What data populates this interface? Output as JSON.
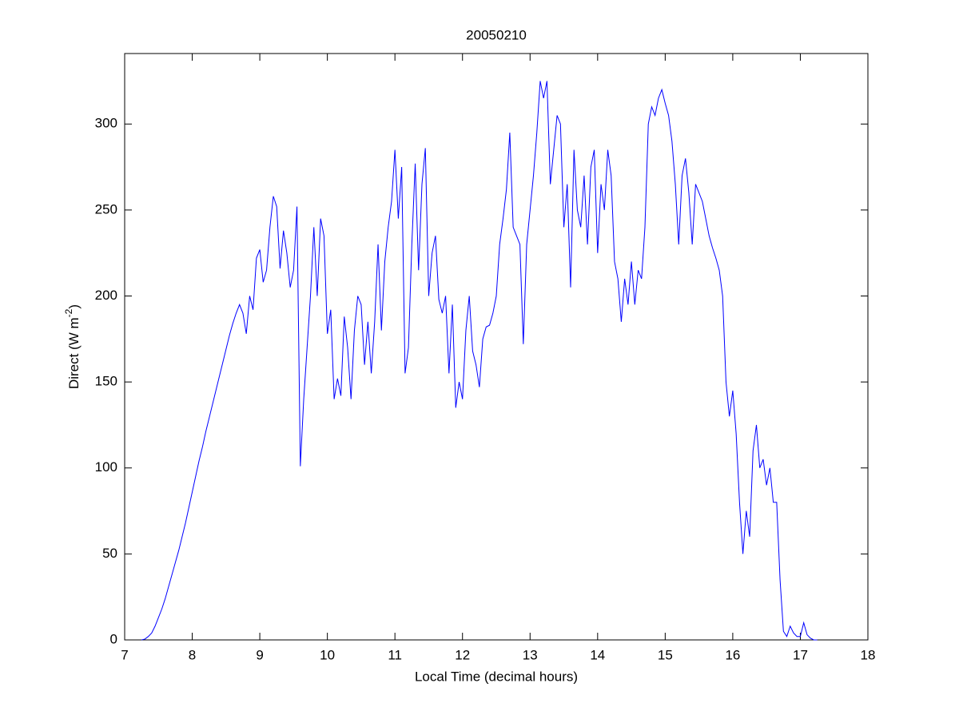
{
  "chart_data": {
    "type": "line",
    "title": "20050210",
    "xlabel": "Local Time (decimal hours)",
    "ylabel": {
      "text": "Direct (W m",
      "sup": "-2",
      "tail": ")"
    },
    "xlim": [
      7,
      18
    ],
    "xticks": [
      7,
      8,
      9,
      10,
      11,
      12,
      13,
      14,
      15,
      16,
      17,
      18
    ],
    "ylim": [
      0,
      341
    ],
    "yticks": [
      0,
      50,
      100,
      150,
      200,
      250,
      300
    ],
    "grid": false,
    "series": [
      {
        "name": "Direct",
        "color": "#0000ff",
        "x": [
          7.25,
          7.3,
          7.35,
          7.4,
          7.45,
          7.5,
          7.55,
          7.6,
          7.65,
          7.7,
          7.75,
          7.8,
          7.85,
          7.9,
          7.95,
          8.0,
          8.05,
          8.1,
          8.15,
          8.2,
          8.25,
          8.3,
          8.35,
          8.4,
          8.45,
          8.5,
          8.55,
          8.6,
          8.65,
          8.7,
          8.75,
          8.8,
          8.85,
          8.9,
          8.95,
          9.0,
          9.05,
          9.1,
          9.15,
          9.2,
          9.25,
          9.3,
          9.35,
          9.4,
          9.45,
          9.5,
          9.55,
          9.6,
          9.65,
          9.7,
          9.75,
          9.8,
          9.85,
          9.9,
          9.95,
          10.0,
          10.05,
          10.1,
          10.15,
          10.2,
          10.25,
          10.3,
          10.35,
          10.4,
          10.45,
          10.5,
          10.55,
          10.6,
          10.65,
          10.7,
          10.75,
          10.8,
          10.85,
          10.9,
          10.95,
          11.0,
          11.05,
          11.1,
          11.15,
          11.2,
          11.25,
          11.3,
          11.35,
          11.4,
          11.45,
          11.5,
          11.55,
          11.6,
          11.65,
          11.7,
          11.75,
          11.8,
          11.85,
          11.9,
          11.95,
          12.0,
          12.05,
          12.1,
          12.15,
          12.2,
          12.25,
          12.3,
          12.35,
          12.4,
          12.45,
          12.5,
          12.55,
          12.6,
          12.65,
          12.7,
          12.75,
          12.8,
          12.85,
          12.9,
          12.95,
          13.0,
          13.05,
          13.1,
          13.15,
          13.2,
          13.25,
          13.3,
          13.35,
          13.4,
          13.45,
          13.5,
          13.55,
          13.6,
          13.65,
          13.7,
          13.75,
          13.8,
          13.85,
          13.9,
          13.95,
          14.0,
          14.05,
          14.1,
          14.15,
          14.2,
          14.25,
          14.3,
          14.35,
          14.4,
          14.45,
          14.5,
          14.55,
          14.6,
          14.65,
          14.7,
          14.75,
          14.8,
          14.85,
          14.9,
          14.95,
          15.0,
          15.05,
          15.1,
          15.15,
          15.2,
          15.25,
          15.3,
          15.35,
          15.4,
          15.45,
          15.5,
          15.55,
          15.6,
          15.65,
          15.7,
          15.75,
          15.8,
          15.85,
          15.9,
          15.95,
          16.0,
          16.05,
          16.1,
          16.15,
          16.2,
          16.25,
          16.3,
          16.35,
          16.4,
          16.45,
          16.5,
          16.55,
          16.6,
          16.65,
          16.7,
          16.75,
          16.8,
          16.85,
          16.9,
          16.95,
          17.0,
          17.05,
          17.1,
          17.15,
          17.2,
          17.25
        ],
        "values": [
          0,
          0.5,
          2,
          4,
          8,
          13,
          18,
          24,
          31,
          38,
          45,
          52,
          60,
          68,
          77,
          86,
          95,
          104,
          112,
          121,
          129,
          137,
          145,
          153,
          161,
          169,
          177,
          184,
          190,
          195,
          190,
          178,
          200,
          192,
          222,
          227,
          208,
          215,
          240,
          258,
          252,
          216,
          238,
          225,
          205,
          215,
          252,
          101,
          140,
          170,
          200,
          240,
          200,
          245,
          235,
          178,
          192,
          140,
          152,
          142,
          188,
          170,
          140,
          180,
          200,
          195,
          160,
          185,
          155,
          185,
          230,
          180,
          220,
          240,
          255,
          285,
          245,
          275,
          155,
          170,
          230,
          277,
          215,
          265,
          286,
          200,
          225,
          235,
          198,
          190,
          200,
          155,
          195,
          135,
          150,
          140,
          180,
          200,
          168,
          160,
          147,
          175,
          182,
          183,
          190,
          200,
          230,
          245,
          262,
          295,
          240,
          235,
          230,
          172,
          230,
          250,
          270,
          295,
          325,
          315,
          325,
          265,
          285,
          305,
          300,
          240,
          265,
          205,
          285,
          250,
          240,
          270,
          230,
          275,
          285,
          225,
          265,
          250,
          285,
          270,
          220,
          210,
          185,
          210,
          195,
          220,
          195,
          215,
          210,
          240,
          300,
          310,
          305,
          315,
          320,
          312,
          305,
          290,
          265,
          230,
          270,
          280,
          260,
          230,
          265,
          260,
          255,
          245,
          235,
          228,
          222,
          215,
          200,
          150,
          130,
          145,
          120,
          80,
          50,
          75,
          60,
          110,
          125,
          100,
          105,
          90,
          100,
          80,
          80,
          35,
          5,
          2,
          8,
          4,
          2,
          2,
          10,
          3,
          1,
          0,
          0
        ]
      }
    ]
  }
}
